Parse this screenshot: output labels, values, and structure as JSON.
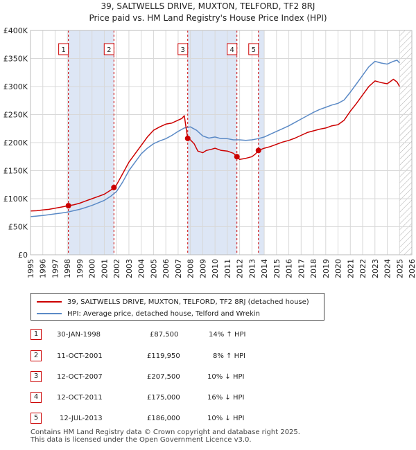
{
  "header": {
    "title_line1": "39, SALTWELLS DRIVE, MUXTON, TELFORD, TF2 8RJ",
    "title_line2": "Price paid vs. HM Land Registry's House Price Index (HPI)"
  },
  "chart_data": {
    "type": "line",
    "title": "39, SALTWELLS DRIVE, MUXTON, TELFORD, TF2 8RJ — Price paid vs. HM Land Registry's House Price Index (HPI)",
    "xlim": [
      1995,
      2026
    ],
    "ylim": [
      0,
      400000
    ],
    "x_ticks": [
      "1995",
      "1996",
      "1997",
      "1998",
      "1999",
      "2000",
      "2001",
      "2002",
      "2003",
      "2004",
      "2005",
      "2006",
      "2007",
      "2008",
      "2009",
      "2010",
      "2011",
      "2012",
      "2013",
      "2014",
      "2015",
      "2016",
      "2017",
      "2018",
      "2019",
      "2020",
      "2021",
      "2022",
      "2023",
      "2024",
      "2025",
      "2026"
    ],
    "y_ticks": [
      {
        "value": 0,
        "label": "£0"
      },
      {
        "value": 50000,
        "label": "£50K"
      },
      {
        "value": 100000,
        "label": "£100K"
      },
      {
        "value": 150000,
        "label": "£150K"
      },
      {
        "value": 200000,
        "label": "£200K"
      },
      {
        "value": 250000,
        "label": "£250K"
      },
      {
        "value": 300000,
        "label": "£300K"
      },
      {
        "value": 350000,
        "label": "£350K"
      },
      {
        "value": 400000,
        "label": "£400K"
      }
    ],
    "colors": {
      "property": "#cc0000",
      "hpi": "#5b8ac6",
      "shade": "#dde6f5",
      "grid": "#d8d8d8",
      "vline": "#cc0000",
      "hatch": "#aaaaaa"
    },
    "shaded_ranges": [
      [
        1998.08,
        2001.78
      ],
      [
        2007.78,
        2011.78
      ],
      [
        2013.53,
        2014.0
      ]
    ],
    "hatched_from": 2025.0,
    "series": [
      {
        "name": "39, SALTWELLS DRIVE, MUXTON, TELFORD, TF2 8RJ (detached house)",
        "color": "#cc0000",
        "x": [
          1995.0,
          1995.5,
          1996.0,
          1996.5,
          1997.0,
          1997.5,
          1998.08,
          1998.5,
          1999.0,
          1999.5,
          2000.0,
          2000.5,
          2001.0,
          2001.5,
          2001.78,
          2002.0,
          2002.5,
          2003.0,
          2003.5,
          2004.0,
          2004.5,
          2005.0,
          2005.5,
          2006.0,
          2006.5,
          2007.0,
          2007.3,
          2007.5,
          2007.78,
          2008.0,
          2008.3,
          2008.6,
          2009.0,
          2009.3,
          2009.7,
          2010.0,
          2010.5,
          2011.0,
          2011.5,
          2011.78,
          2012.0,
          2012.5,
          2013.0,
          2013.3,
          2013.53,
          2014.0,
          2014.5,
          2015.0,
          2015.5,
          2016.0,
          2016.5,
          2017.0,
          2017.5,
          2018.0,
          2018.5,
          2019.0,
          2019.5,
          2020.0,
          2020.5,
          2021.0,
          2021.5,
          2022.0,
          2022.5,
          2023.0,
          2023.5,
          2024.0,
          2024.5,
          2024.8,
          2025.0
        ],
        "values": [
          78000,
          78500,
          80000,
          81000,
          83000,
          85000,
          87500,
          89000,
          92000,
          96000,
          100000,
          104000,
          108000,
          115000,
          119950,
          125000,
          145000,
          165000,
          180000,
          195000,
          210000,
          222000,
          228000,
          233000,
          235000,
          240000,
          243000,
          248000,
          207500,
          205000,
          198000,
          185000,
          182000,
          186000,
          188000,
          190000,
          186000,
          185000,
          181000,
          175000,
          170000,
          172000,
          175000,
          180000,
          186000,
          190000,
          193000,
          197000,
          201000,
          204000,
          208000,
          213000,
          218000,
          221000,
          224000,
          226000,
          230000,
          232000,
          240000,
          256000,
          270000,
          285000,
          300000,
          310000,
          307000,
          305000,
          313000,
          308000,
          300000
        ]
      },
      {
        "name": "HPI: Average price, detached house, Telford and Wrekin",
        "color": "#5b8ac6",
        "x": [
          1995.0,
          1995.5,
          1996.0,
          1996.5,
          1997.0,
          1997.5,
          1998.0,
          1998.5,
          1999.0,
          1999.5,
          2000.0,
          2000.5,
          2001.0,
          2001.5,
          2002.0,
          2002.5,
          2003.0,
          2003.5,
          2004.0,
          2004.5,
          2005.0,
          2005.5,
          2006.0,
          2006.5,
          2007.0,
          2007.5,
          2008.0,
          2008.5,
          2009.0,
          2009.5,
          2010.0,
          2010.5,
          2011.0,
          2011.5,
          2012.0,
          2012.5,
          2013.0,
          2013.5,
          2014.0,
          2014.5,
          2015.0,
          2015.5,
          2016.0,
          2016.5,
          2017.0,
          2017.5,
          2018.0,
          2018.5,
          2019.0,
          2019.5,
          2020.0,
          2020.5,
          2021.0,
          2021.5,
          2022.0,
          2022.5,
          2023.0,
          2023.5,
          2024.0,
          2024.5,
          2024.8,
          2025.0
        ],
        "values": [
          68000,
          69000,
          70000,
          71500,
          73000,
          74500,
          76000,
          78500,
          81000,
          84500,
          88000,
          92500,
          97000,
          104000,
          113000,
          130000,
          150000,
          165000,
          180000,
          190000,
          198000,
          203000,
          207000,
          213000,
          220000,
          226000,
          228000,
          222000,
          212000,
          208000,
          210000,
          207000,
          207000,
          205000,
          205000,
          204000,
          205000,
          207000,
          210000,
          215000,
          220000,
          225000,
          230000,
          236000,
          242000,
          248000,
          254000,
          259000,
          263000,
          267000,
          270000,
          276000,
          290000,
          305000,
          320000,
          335000,
          345000,
          342000,
          340000,
          345000,
          347000,
          342000
        ]
      }
    ],
    "sales": [
      {
        "id": "1",
        "x": 1998.08,
        "value": 87500
      },
      {
        "id": "2",
        "x": 2001.78,
        "value": 119950
      },
      {
        "id": "3",
        "x": 2007.78,
        "value": 207500
      },
      {
        "id": "4",
        "x": 2011.78,
        "value": 175000
      },
      {
        "id": "5",
        "x": 2013.53,
        "value": 186000
      }
    ]
  },
  "legend": {
    "property_label": "39, SALTWELLS DRIVE, MUXTON, TELFORD, TF2 8RJ (detached house)",
    "hpi_label": "HPI: Average price, detached house, Telford and Wrekin"
  },
  "transactions": [
    {
      "num": "1",
      "date": "30-JAN-1998",
      "price": "£87,500",
      "hpi": "14% ↑ HPI"
    },
    {
      "num": "2",
      "date": "11-OCT-2001",
      "price": "£119,950",
      "hpi": "8% ↑ HPI"
    },
    {
      "num": "3",
      "date": "12-OCT-2007",
      "price": "£207,500",
      "hpi": "10% ↓ HPI"
    },
    {
      "num": "4",
      "date": "12-OCT-2011",
      "price": "£175,000",
      "hpi": "16% ↓ HPI"
    },
    {
      "num": "5",
      "date": "12-JUL-2013",
      "price": "£186,000",
      "hpi": "10% ↓ HPI"
    }
  ],
  "footer": {
    "line1": "Contains HM Land Registry data © Crown copyright and database right 2025.",
    "line2": "This data is licensed under the Open Government Licence v3.0."
  }
}
